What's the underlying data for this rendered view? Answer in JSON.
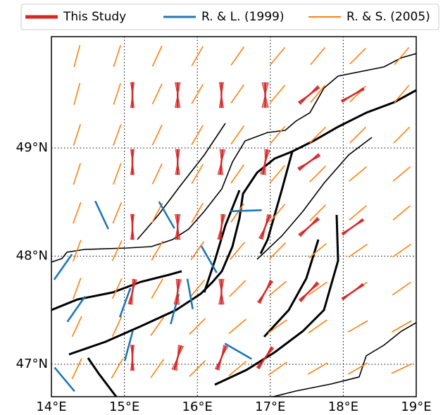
{
  "chart_data": {
    "type": "map",
    "xlim": [
      14,
      19
    ],
    "ylim": [
      46.7,
      50.03
    ],
    "xticks": [
      {
        "value": 14,
        "label": "14°E"
      },
      {
        "value": 15,
        "label": "15°E"
      },
      {
        "value": 16,
        "label": "16°E"
      },
      {
        "value": 17,
        "label": "17°E"
      },
      {
        "value": 18,
        "label": "18°E"
      },
      {
        "value": 19,
        "label": "19°E"
      }
    ],
    "yticks": [
      {
        "value": 47,
        "label": "47°N"
      },
      {
        "value": 48,
        "label": "48°N"
      },
      {
        "value": 49,
        "label": "49°N"
      }
    ],
    "grid": true,
    "legend": "top",
    "series": [
      {
        "name": "This Study",
        "color": "#d62728",
        "x": [
          15.11,
          15.73,
          16.33,
          16.93,
          17.53,
          18.13,
          15.11,
          15.73,
          16.33,
          16.93,
          17.53,
          15.11,
          15.73,
          16.33,
          16.93,
          17.53,
          18.13,
          15.11,
          15.73,
          16.33,
          16.93,
          17.53,
          18.13,
          15.11,
          15.73,
          16.33,
          16.93
        ],
        "y": [
          49.49,
          49.49,
          49.49,
          49.49,
          49.49,
          49.49,
          48.87,
          48.87,
          48.87,
          48.87,
          48.87,
          48.27,
          48.27,
          48.27,
          48.27,
          48.27,
          48.27,
          47.67,
          47.67,
          47.67,
          47.67,
          47.67,
          47.67,
          47.06,
          47.06,
          47.06,
          47.06
        ],
        "values": [
          0,
          0,
          0,
          0,
          50,
          60,
          0,
          0,
          5,
          10,
          55,
          0,
          0,
          8,
          20,
          48,
          55,
          10,
          5,
          0,
          30,
          45,
          55,
          0,
          15,
          20,
          35
        ],
        "uncertainty": [
          8,
          12,
          10,
          15,
          8,
          6,
          8,
          10,
          12,
          12,
          8,
          8,
          12,
          10,
          10,
          8,
          6,
          10,
          12,
          12,
          8,
          8,
          6,
          8,
          12,
          10,
          8
        ]
      },
      {
        "name": "R. & L. (1999)",
        "color": "#1f77b4",
        "x": [
          14.69,
          15.58,
          16.67,
          16.16,
          15.9,
          15.69,
          15.06,
          14.16,
          14.34,
          14.18,
          16.56,
          15.01
        ],
        "y": [
          48.38,
          48.38,
          48.42,
          47.97,
          47.65,
          47.51,
          47.17,
          47.9,
          47.51,
          46.86,
          47.12,
          47.57
        ],
        "values": [
          155,
          150,
          88,
          150,
          170,
          15,
          15,
          35,
          35,
          140,
          120,
          20
        ]
      },
      {
        "name": "R. & S. (2005)",
        "color": "#ff7f0e",
        "x": [
          14.35,
          14.9,
          15.45,
          16.0,
          16.55,
          17.1,
          17.65,
          18.2,
          18.8,
          14.35,
          14.9,
          15.45,
          16.0,
          16.55,
          17.1,
          17.65,
          18.2,
          18.8,
          14.35,
          14.9,
          15.45,
          16.0,
          16.55,
          17.1,
          17.65,
          18.2,
          18.8,
          14.35,
          14.9,
          15.45,
          16.0,
          16.55,
          17.1,
          17.65,
          18.2,
          18.8,
          14.35,
          14.9,
          15.45,
          16.0,
          16.55,
          17.1,
          17.65,
          18.2,
          18.8,
          14.35,
          14.9,
          15.45,
          16.0,
          16.55,
          17.1,
          17.65,
          18.2,
          18.8,
          14.35,
          14.9,
          15.45,
          16.0,
          16.55,
          17.1,
          17.65,
          18.2,
          18.8,
          14.35,
          14.9,
          15.45,
          16.0,
          16.55,
          17.1,
          17.65,
          18.2,
          18.8,
          14.35,
          14.9,
          15.45,
          16.0,
          16.55,
          17.1,
          17.65,
          18.2,
          18.8
        ],
        "y": [
          49.85,
          49.85,
          49.85,
          49.85,
          49.85,
          49.85,
          49.85,
          49.85,
          49.85,
          49.5,
          49.5,
          49.5,
          49.5,
          49.5,
          49.5,
          49.5,
          49.5,
          49.5,
          49.12,
          49.12,
          49.12,
          49.12,
          49.12,
          49.12,
          49.12,
          49.12,
          49.12,
          48.76,
          48.76,
          48.76,
          48.76,
          48.76,
          48.76,
          48.76,
          48.76,
          48.76,
          48.4,
          48.4,
          48.4,
          48.4,
          48.4,
          48.4,
          48.4,
          48.4,
          48.4,
          48.05,
          48.05,
          48.05,
          48.05,
          48.05,
          48.05,
          48.05,
          48.05,
          48.05,
          47.7,
          47.7,
          47.7,
          47.7,
          47.7,
          47.7,
          47.7,
          47.7,
          47.7,
          47.35,
          47.35,
          47.35,
          47.35,
          47.35,
          47.35,
          47.35,
          47.35,
          47.35,
          46.96,
          46.96,
          46.96,
          46.96,
          46.96,
          46.96,
          46.96,
          46.96,
          46.96
        ],
        "values": [
          15,
          18,
          25,
          30,
          35,
          40,
          40,
          45,
          40,
          15,
          18,
          25,
          30,
          35,
          40,
          40,
          45,
          40,
          18,
          20,
          25,
          30,
          35,
          40,
          45,
          45,
          45,
          18,
          20,
          25,
          30,
          35,
          40,
          45,
          50,
          50,
          20,
          22,
          28,
          30,
          35,
          40,
          45,
          50,
          50,
          20,
          25,
          30,
          35,
          40,
          45,
          50,
          55,
          55,
          20,
          25,
          30,
          40,
          45,
          50,
          55,
          55,
          55,
          25,
          25,
          35,
          45,
          50,
          55,
          55,
          60,
          60,
          25,
          30,
          35,
          45,
          50,
          55,
          60,
          60,
          65
        ]
      }
    ]
  }
}
